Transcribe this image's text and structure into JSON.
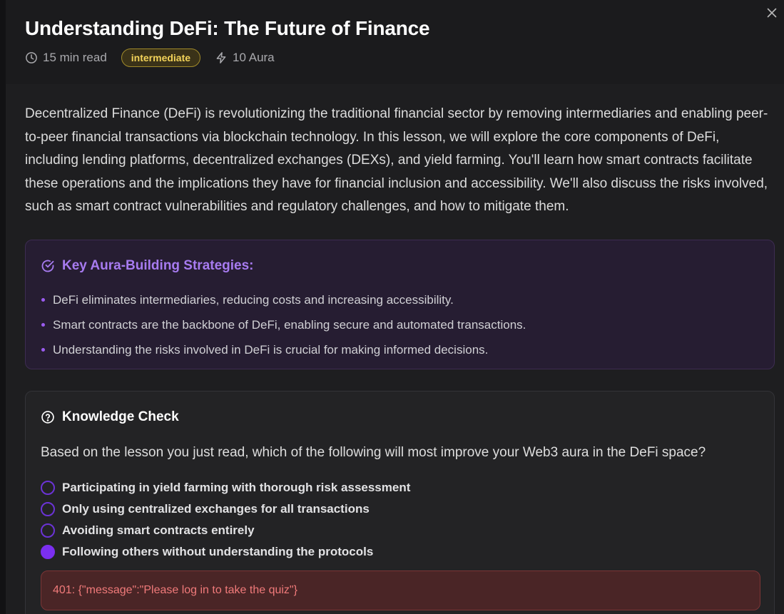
{
  "lesson": {
    "title": "Understanding DeFi: The Future of Finance",
    "read_time": "15 min read",
    "level": "intermediate",
    "reward": "10 Aura",
    "intro": "Decentralized Finance (DeFi) is revolutionizing the traditional financial sector by removing intermediaries and enabling peer-to-peer financial transactions via blockchain technology. In this lesson, we will explore the core components of DeFi, including lending platforms, decentralized exchanges (DEXs), and yield farming. You'll learn how smart contracts facilitate these operations and the implications they have for financial inclusion and accessibility. We'll also discuss the risks involved, such as smart contract vulnerabilities and regulatory challenges, and how to mitigate them."
  },
  "strategies": {
    "title": "Key Aura-Building Strategies:",
    "items": [
      "DeFi eliminates intermediaries, reducing costs and increasing accessibility.",
      "Smart contracts are the backbone of DeFi, enabling secure and automated transactions.",
      "Understanding the risks involved in DeFi is crucial for making informed decisions."
    ]
  },
  "quiz": {
    "title": "Knowledge Check",
    "question": "Based on the lesson you just read, which of the following will most improve your Web3 aura in the DeFi space?",
    "options": [
      "Participating in yield farming with thorough risk assessment",
      "Only using centralized exchanges for all transactions",
      "Avoiding smart contracts entirely",
      "Following others without understanding the protocols"
    ],
    "selected_index": 3,
    "error": "401: {\"message\":\"Please log in to take the quiz\"}"
  },
  "icons": {
    "close": "close-icon",
    "clock": "clock-icon",
    "bolt": "bolt-icon",
    "check_circle": "check-circle-icon",
    "help_circle": "help-circle-icon"
  },
  "colors": {
    "accent_purple": "#a77bf0",
    "badge_yellow": "#f2d35a",
    "error_red": "#f07a7a",
    "radio_selected": "#7b2ff0"
  }
}
